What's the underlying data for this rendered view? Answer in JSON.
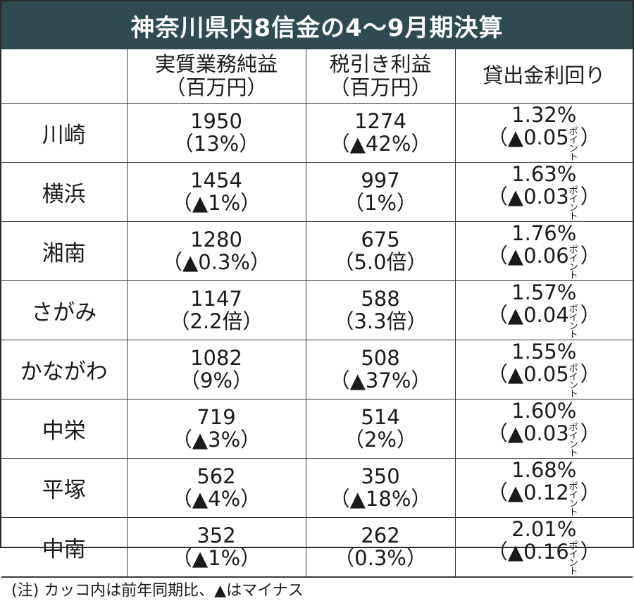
{
  "title": "神奈川県内8信金の4～9月期決算",
  "headers": [
    {
      "line1": "",
      "line2": ""
    },
    {
      "line1": "実質業務純益",
      "line2": "（百万円）"
    },
    {
      "line1": "税引き利益",
      "line2": "（百万円）"
    },
    {
      "line1": "貸出金利回り",
      "line2": ""
    }
  ],
  "rows": [
    {
      "name": "川崎",
      "op_profit": "1950",
      "op_change": "（13%）",
      "net_profit": "1274",
      "net_change": "（▲42%）",
      "yield": "1.32%",
      "yield_change": "（▲0.05",
      "yield_unit": "ポイント",
      "yield_close": "）"
    },
    {
      "name": "横浜",
      "op_profit": "1454",
      "op_change": "（▲1%）",
      "net_profit": "997",
      "net_change": "（1%）",
      "yield": "1.63%",
      "yield_change": "（▲0.03",
      "yield_unit": "ポイント",
      "yield_close": "）"
    },
    {
      "name": "湘南",
      "op_profit": "1280",
      "op_change": "（▲0.3%）",
      "net_profit": "675",
      "net_change": "（5.0倍）",
      "yield": "1.76%",
      "yield_change": "（▲0.06",
      "yield_unit": "ポイント",
      "yield_close": "）"
    },
    {
      "name": "さがみ",
      "op_profit": "1147",
      "op_change": "（2.2倍）",
      "net_profit": "588",
      "net_change": "（3.3倍）",
      "yield": "1.57%",
      "yield_change": "（▲0.04",
      "yield_unit": "ポイント",
      "yield_close": "）"
    },
    {
      "name": "かながわ",
      "op_profit": "1082",
      "op_change": "（9%）",
      "net_profit": "508",
      "net_change": "（▲37%）",
      "yield": "1.55%",
      "yield_change": "（▲0.05",
      "yield_unit": "ポイント",
      "yield_close": "）"
    },
    {
      "name": "中栄",
      "op_profit": "719",
      "op_change": "（▲3%）",
      "net_profit": "514",
      "net_change": "（2%）",
      "yield": "1.60%",
      "yield_change": "（▲0.03",
      "yield_unit": "ポイント",
      "yield_close": "）"
    },
    {
      "name": "平塚",
      "op_profit": "562",
      "op_change": "（▲4%）",
      "net_profit": "350",
      "net_change": "（▲18%）",
      "yield": "1.68%",
      "yield_change": "（▲0.12",
      "yield_unit": "ポイント",
      "yield_close": "）"
    },
    {
      "name": "中南",
      "op_profit": "352",
      "op_change": "（▲1%）",
      "net_profit": "262",
      "net_change": "（0.3%）",
      "yield": "2.01%",
      "yield_change": "（▲0.16",
      "yield_unit": "ポイント",
      "yield_close": "）"
    }
  ],
  "footnote": "(注) カッコ内は前年同期比、▲はマイナス"
}
